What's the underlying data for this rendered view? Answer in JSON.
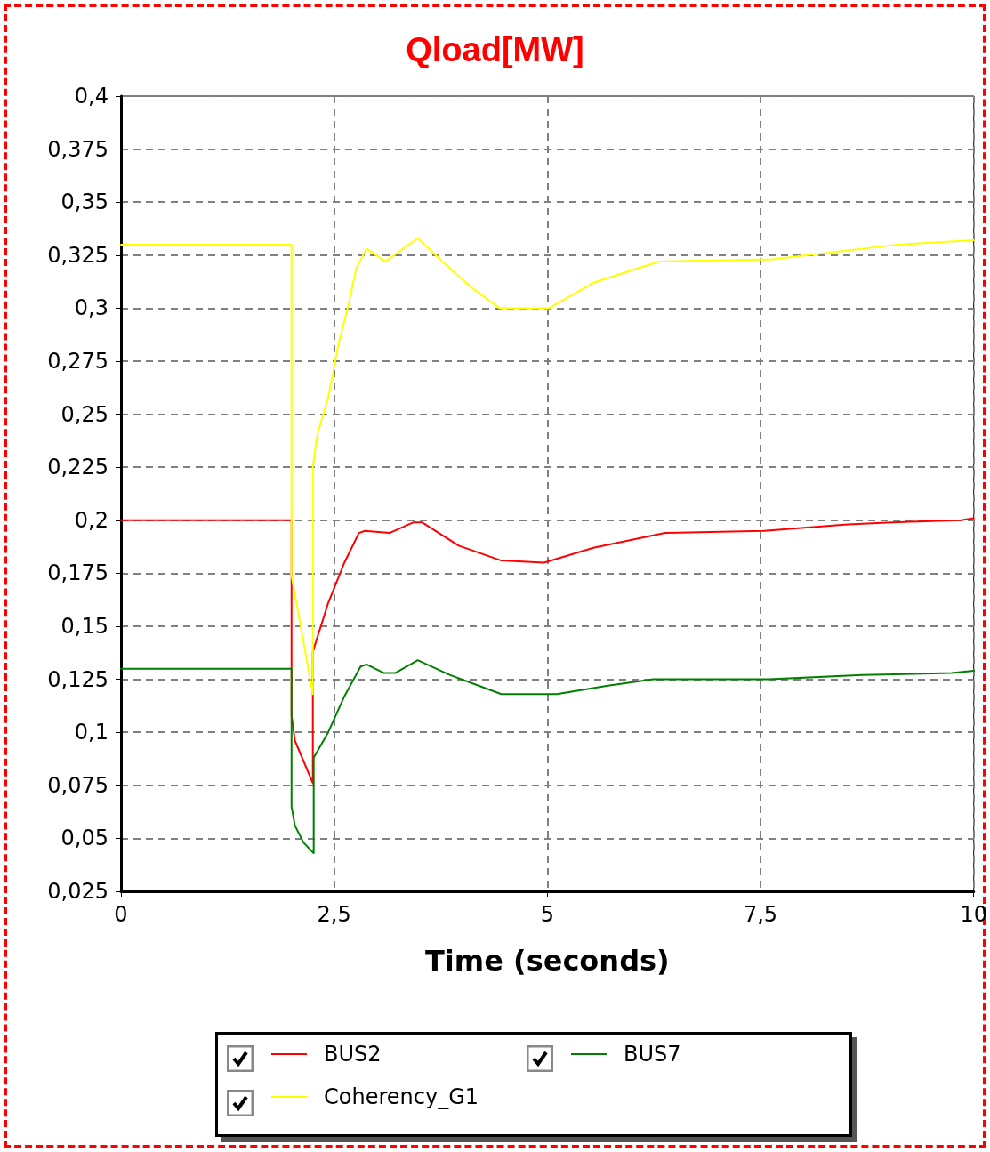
{
  "chart_data": {
    "type": "line",
    "title": "Qload[MW]",
    "xlabel": "Time (seconds)",
    "xlim": [
      0,
      10
    ],
    "xticks": [
      0,
      {
        "value": 2.5,
        "label": "2,5"
      },
      5,
      {
        "value": 7.5,
        "label": "7,5"
      },
      10
    ],
    "ylim": [
      0.025,
      0.4
    ],
    "yticks": [
      {
        "value": 0.025,
        "label": "0,025"
      },
      {
        "value": 0.05,
        "label": "0,05"
      },
      {
        "value": 0.075,
        "label": "0,075"
      },
      {
        "value": 0.1,
        "label": "0,1"
      },
      {
        "value": 0.125,
        "label": "0,125"
      },
      {
        "value": 0.15,
        "label": "0,15"
      },
      {
        "value": 0.175,
        "label": "0,175"
      },
      {
        "value": 0.2,
        "label": "0,2"
      },
      {
        "value": 0.225,
        "label": "0,225"
      },
      {
        "value": 0.25,
        "label": "0,25"
      },
      {
        "value": 0.275,
        "label": "0,275"
      },
      {
        "value": 0.3,
        "label": "0,3"
      },
      {
        "value": 0.325,
        "label": "0,325"
      },
      {
        "value": 0.35,
        "label": "0,35"
      },
      {
        "value": 0.375,
        "label": "0,375"
      },
      {
        "value": 0.4,
        "label": "0,4"
      }
    ],
    "grid": true,
    "legend": "bottom",
    "marker": "none",
    "line_style": "solid",
    "series": [
      {
        "name": "BUS2",
        "color": "#ff0000",
        "x": [
          0,
          2,
          2,
          2.04,
          2.25,
          2.25,
          2.43,
          2.62,
          2.79,
          2.86,
          3.15,
          3.43,
          3.53,
          3.96,
          4.46,
          4.96,
          5.54,
          6.38,
          7.54,
          8.52,
          9.04,
          9.85,
          10
        ],
        "values": [
          0.2,
          0.2,
          0.108,
          0.096,
          0.076,
          0.138,
          0.161,
          0.18,
          0.194,
          0.195,
          0.194,
          0.199,
          0.199,
          0.188,
          0.181,
          0.18,
          0.187,
          0.194,
          0.195,
          0.198,
          0.199,
          0.2,
          0.201
        ]
      },
      {
        "name": "BUS7",
        "color": "#008000",
        "x": [
          0,
          2,
          2,
          2.04,
          2.14,
          2.26,
          2.26,
          2.43,
          2.62,
          2.81,
          2.88,
          3.08,
          3.22,
          3.48,
          3.86,
          4.46,
          5.11,
          5.71,
          6.24,
          7.6,
          8.69,
          9.74,
          10
        ],
        "values": [
          0.13,
          0.13,
          0.065,
          0.056,
          0.048,
          0.043,
          0.088,
          0.1,
          0.117,
          0.131,
          0.132,
          0.128,
          0.128,
          0.134,
          0.127,
          0.118,
          0.118,
          0.122,
          0.125,
          0.125,
          0.127,
          0.128,
          0.129
        ]
      },
      {
        "name": "Coherency_G1",
        "color": "#ffff00",
        "x": [
          0,
          2,
          2,
          2.25,
          2.25,
          2.3,
          2.43,
          2.55,
          2.67,
          2.76,
          2.88,
          3.1,
          3.48,
          3.77,
          4.1,
          4.44,
          5.02,
          5.54,
          6.31,
          7.64,
          9.11,
          10
        ],
        "values": [
          0.33,
          0.33,
          0.174,
          0.118,
          0.225,
          0.24,
          0.258,
          0.283,
          0.302,
          0.319,
          0.328,
          0.322,
          0.333,
          0.322,
          0.31,
          0.3,
          0.3,
          0.312,
          0.322,
          0.323,
          0.33,
          0.332
        ]
      }
    ]
  }
}
